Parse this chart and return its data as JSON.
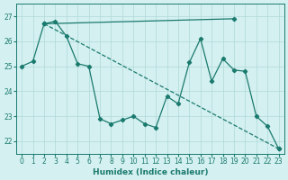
{
  "xlabel": "Humidex (Indice chaleur)",
  "bg_color": "#d4f0f0",
  "grid_color": "#b0d8d8",
  "line_color": "#1a7a6e",
  "xlim": [
    -0.5,
    23.5
  ],
  "ylim": [
    21.5,
    27.5
  ],
  "yticks": [
    22,
    23,
    24,
    25,
    26,
    27
  ],
  "xticks": [
    0,
    1,
    2,
    3,
    4,
    5,
    6,
    7,
    8,
    9,
    10,
    11,
    12,
    13,
    14,
    15,
    16,
    17,
    18,
    19,
    20,
    21,
    22,
    23
  ],
  "line_straight": {
    "x": [
      2,
      23
    ],
    "y": [
      26.7,
      21.7
    ]
  },
  "line_flat": {
    "x": [
      2,
      19
    ],
    "y": [
      26.7,
      26.9
    ]
  },
  "line_wiggly": {
    "x": [
      0,
      1,
      2,
      3,
      4,
      5,
      6,
      7,
      8,
      9,
      10,
      11,
      12,
      13,
      14,
      15,
      16,
      17,
      18,
      19,
      20,
      21,
      22,
      23
    ],
    "y": [
      25.0,
      25.2,
      26.7,
      26.8,
      26.2,
      25.1,
      25.0,
      22.9,
      22.7,
      22.85,
      23.0,
      22.7,
      22.55,
      23.8,
      23.5,
      25.15,
      26.1,
      24.4,
      25.3,
      24.85,
      24.8,
      23.0,
      22.6,
      21.7
    ]
  }
}
